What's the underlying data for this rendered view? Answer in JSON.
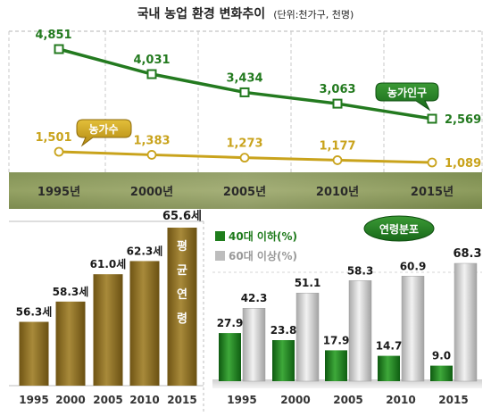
{
  "title_main": "국내 농업 환경 변화추이",
  "title_unit": "(단위:천가구, 천명)",
  "years_top": [
    "1995년",
    "2000년",
    "2005년",
    "2010년",
    "2015년"
  ],
  "chart_data": [
    {
      "type": "line",
      "title": "국내 농업 환경 변화추이",
      "unit": "(단위:천가구, 천명)",
      "x": [
        "1995년",
        "2000년",
        "2005년",
        "2010년",
        "2015년"
      ],
      "series": [
        {
          "name": "농가인구",
          "values": [
            4851,
            4031,
            3434,
            3063,
            2569
          ],
          "labels": [
            "4,851",
            "4,031",
            "3,434",
            "3,063",
            "2,569"
          ],
          "color": "#237a1f"
        },
        {
          "name": "농가수",
          "values": [
            1501,
            1383,
            1273,
            1177,
            1089
          ],
          "labels": [
            "1,501",
            "1,383",
            "1,273",
            "1,177",
            "1,089"
          ],
          "color": "#c9a31c"
        }
      ]
    },
    {
      "type": "bar",
      "title": "평균연령",
      "categories": [
        "1995",
        "2000",
        "2005",
        "2010",
        "2015"
      ],
      "values": [
        56.3,
        58.3,
        61.0,
        62.3,
        65.6
      ],
      "labels": [
        "56.3세",
        "58.3세",
        "61.0세",
        "62.3세",
        "65.6세"
      ],
      "ylim": [
        50,
        70
      ]
    },
    {
      "type": "bar",
      "title": "연령분포",
      "categories": [
        "1995",
        "2000",
        "2005",
        "2010",
        "2015"
      ],
      "series": [
        {
          "name": "40대 이하(%)",
          "values": [
            27.9,
            23.8,
            17.9,
            14.7,
            9.0
          ],
          "labels": [
            "27.9",
            "23.8",
            "17.9",
            "14.7",
            "9.0"
          ],
          "color": "#1f7d1c"
        },
        {
          "name": "60대 이상(%)",
          "values": [
            42.3,
            51.1,
            58.3,
            60.9,
            68.3
          ],
          "labels": [
            "42.3",
            "51.1",
            "58.3",
            "60.9",
            "68.3"
          ],
          "color": "#b8b8b8"
        }
      ],
      "ylim": [
        0,
        75
      ],
      "legend": "top-left"
    }
  ],
  "colors": {
    "green": "#237a1f",
    "gold": "#c9a31c",
    "bar_brown": "#8a6a1e",
    "label_green": "#1e7a1b",
    "label_gray": "#9a9a9a"
  }
}
